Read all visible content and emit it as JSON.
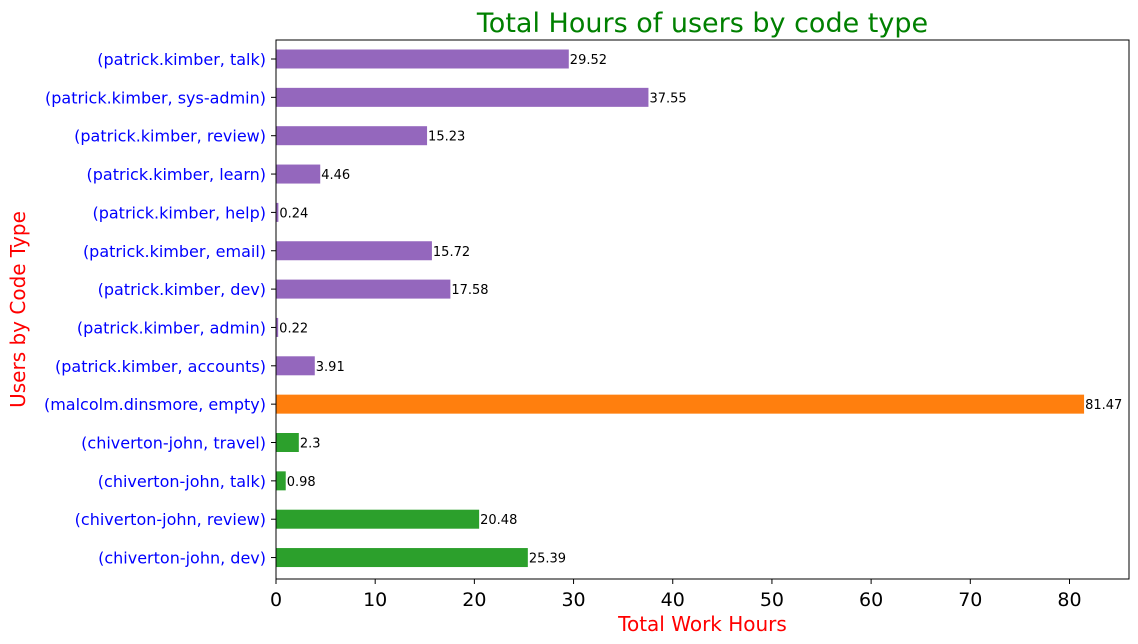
{
  "chart_data": {
    "type": "bar",
    "orientation": "horizontal",
    "title": "Total Hours of users by code type",
    "xlabel": "Total Work Hours",
    "ylabel": "Users by Code Type",
    "xlim": [
      0,
      86
    ],
    "xticks": [
      "0",
      "10",
      "20",
      "30",
      "40",
      "50",
      "60",
      "70",
      "80"
    ],
    "grid": false,
    "legend": "none",
    "colors": {
      "title": "#008000",
      "axis_label": "#ff0000",
      "tick_label_y": "#0000ff",
      "tick_label_x": "#000000"
    },
    "bars": [
      {
        "category": "(patrick.kimber, talk)",
        "value": 29.52,
        "label": "29.52",
        "color": "#9467bd"
      },
      {
        "category": "(patrick.kimber, sys-admin)",
        "value": 37.55,
        "label": "37.55",
        "color": "#9467bd"
      },
      {
        "category": "(patrick.kimber, review)",
        "value": 15.23,
        "label": "15.23",
        "color": "#9467bd"
      },
      {
        "category": "(patrick.kimber, learn)",
        "value": 4.46,
        "label": "4.46",
        "color": "#9467bd"
      },
      {
        "category": "(patrick.kimber, help)",
        "value": 0.24,
        "label": "0.24",
        "color": "#9467bd"
      },
      {
        "category": "(patrick.kimber, email)",
        "value": 15.72,
        "label": "15.72",
        "color": "#9467bd"
      },
      {
        "category": "(patrick.kimber, dev)",
        "value": 17.58,
        "label": "17.58",
        "color": "#9467bd"
      },
      {
        "category": "(patrick.kimber, admin)",
        "value": 0.22,
        "label": "0.22",
        "color": "#9467bd"
      },
      {
        "category": "(patrick.kimber, accounts)",
        "value": 3.91,
        "label": "3.91",
        "color": "#9467bd"
      },
      {
        "category": "(malcolm.dinsmore, empty)",
        "value": 81.47,
        "label": "81.47",
        "color": "#ff7f0e"
      },
      {
        "category": "(chiverton-john, travel)",
        "value": 2.3,
        "label": "2.3",
        "color": "#2ca02c"
      },
      {
        "category": "(chiverton-john, talk)",
        "value": 0.98,
        "label": "0.98",
        "color": "#2ca02c"
      },
      {
        "category": "(chiverton-john, review)",
        "value": 20.48,
        "label": "20.48",
        "color": "#2ca02c"
      },
      {
        "category": "(chiverton-john, dev)",
        "value": 25.39,
        "label": "25.39",
        "color": "#2ca02c"
      }
    ]
  }
}
